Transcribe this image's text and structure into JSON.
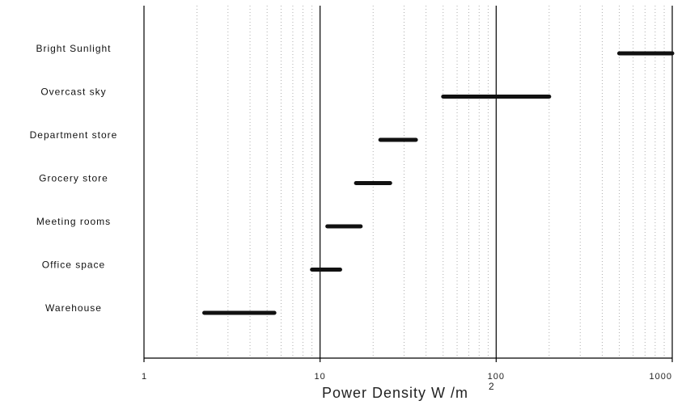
{
  "chart_data": {
    "type": "bar",
    "orientation": "horizontal-range",
    "x_scale": "log",
    "xlim": [
      1,
      1000
    ],
    "x_ticks": [
      1,
      10,
      100,
      1000
    ],
    "x_tick_labels": [
      "1",
      "10",
      "100",
      "1000"
    ],
    "xlabel": "Power Density W /m",
    "xlabel_superscript": "2",
    "ylabel": "",
    "title": "",
    "grid": "log minor dotted vertical, decade lines solid",
    "categories": [
      "Bright Sunlight",
      "Overcast sky",
      "Department store",
      "Grocery store",
      "Meeting rooms",
      "Office space",
      "Warehouse"
    ],
    "ranges": [
      {
        "category": "Bright Sunlight",
        "low": 500,
        "high": 1000
      },
      {
        "category": "Overcast sky",
        "low": 50,
        "high": 200
      },
      {
        "category": "Department store",
        "low": 22,
        "high": 35
      },
      {
        "category": "Grocery store",
        "low": 16,
        "high": 25
      },
      {
        "category": "Meeting rooms",
        "low": 11,
        "high": 17
      },
      {
        "category": "Office space",
        "low": 9,
        "high": 13
      },
      {
        "category": "Warehouse",
        "low": 2.2,
        "high": 5.5
      }
    ],
    "colors": {
      "bar": "#111111",
      "axis": "#000000",
      "grid": "#9a9a9a"
    }
  }
}
